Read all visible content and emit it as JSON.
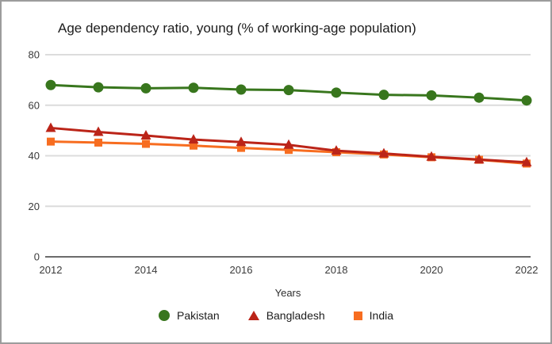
{
  "frame": {
    "background": "#ffffff",
    "border_color": "#9c9c9c"
  },
  "chart_data": {
    "type": "line",
    "title": "Age dependency ratio, young (% of working-age population)",
    "xlabel": "Years",
    "ylabel": "",
    "x": [
      2012,
      2013,
      2014,
      2015,
      2016,
      2017,
      2018,
      2019,
      2020,
      2021,
      2022
    ],
    "x_tick_labels": [
      "2012",
      "2014",
      "2016",
      "2018",
      "2020",
      "2022"
    ],
    "y_ticks": [
      0,
      20,
      40,
      60,
      80
    ],
    "ylim": [
      0,
      80
    ],
    "xlim": [
      2012,
      2022
    ],
    "grid": "horizontal-light",
    "legend_position": "bottom",
    "axis_color": "#6b6b6b",
    "gridline_color": "#dcdcdc",
    "tick_label_color": "#3a3a3a",
    "series": [
      {
        "name": "Pakistan",
        "marker": "circle",
        "color": "#38761d",
        "values": [
          68.0,
          67.1,
          66.7,
          66.9,
          66.2,
          66.0,
          65.0,
          64.1,
          63.9,
          63.0,
          61.9
        ]
      },
      {
        "name": "Bangladesh",
        "marker": "triangle",
        "color": "#bb2418",
        "values": [
          51.0,
          49.4,
          48.0,
          46.4,
          45.4,
          44.3,
          42.0,
          40.9,
          39.6,
          38.5,
          37.4
        ]
      },
      {
        "name": "India",
        "marker": "square",
        "color": "#f76d20",
        "values": [
          45.6,
          45.2,
          44.7,
          44.0,
          43.1,
          42.3,
          41.4,
          40.5,
          39.4,
          38.4,
          36.9
        ]
      }
    ]
  }
}
